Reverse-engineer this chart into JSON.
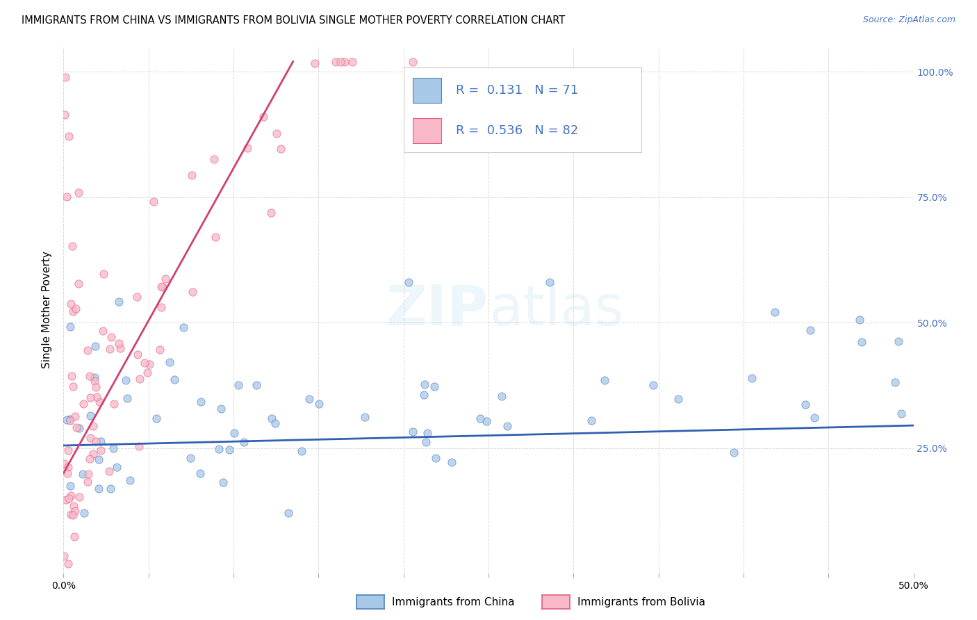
{
  "title": "IMMIGRANTS FROM CHINA VS IMMIGRANTS FROM BOLIVIA SINGLE MOTHER POVERTY CORRELATION CHART",
  "source": "Source: ZipAtlas.com",
  "ylabel": "Single Mother Poverty",
  "xlim": [
    0.0,
    0.5
  ],
  "ylim": [
    0.0,
    1.05
  ],
  "xtick_positions": [
    0.0,
    0.05,
    0.1,
    0.15,
    0.2,
    0.25,
    0.3,
    0.35,
    0.4,
    0.45,
    0.5
  ],
  "xtick_labels": [
    "0.0%",
    "",
    "",
    "",
    "",
    "",
    "",
    "",
    "",
    "",
    "50.0%"
  ],
  "ytick_positions": [
    0.0,
    0.25,
    0.5,
    0.75,
    1.0
  ],
  "ytick_labels_right": [
    "",
    "25.0%",
    "50.0%",
    "75.0%",
    "100.0%"
  ],
  "china_color": "#a8c8e8",
  "bolivia_color": "#f8b8c8",
  "china_edge_color": "#5080c0",
  "bolivia_edge_color": "#e06080",
  "china_line_color": "#3060b0",
  "bolivia_line_color": "#d04070",
  "right_axis_color": "#4472c4",
  "R_china": 0.131,
  "N_china": 71,
  "R_bolivia": 0.536,
  "N_bolivia": 82,
  "legend_label_china": "Immigrants from China",
  "legend_label_bolivia": "Immigrants from Bolivia",
  "watermark": "ZIPatlas",
  "background_color": "#ffffff",
  "grid_color": "#d8d8d8",
  "china_trend_x": [
    0.0,
    0.5
  ],
  "china_trend_y": [
    0.255,
    0.295
  ],
  "bolivia_trend_x": [
    0.0,
    0.135
  ],
  "bolivia_trend_y": [
    0.2,
    1.02
  ]
}
